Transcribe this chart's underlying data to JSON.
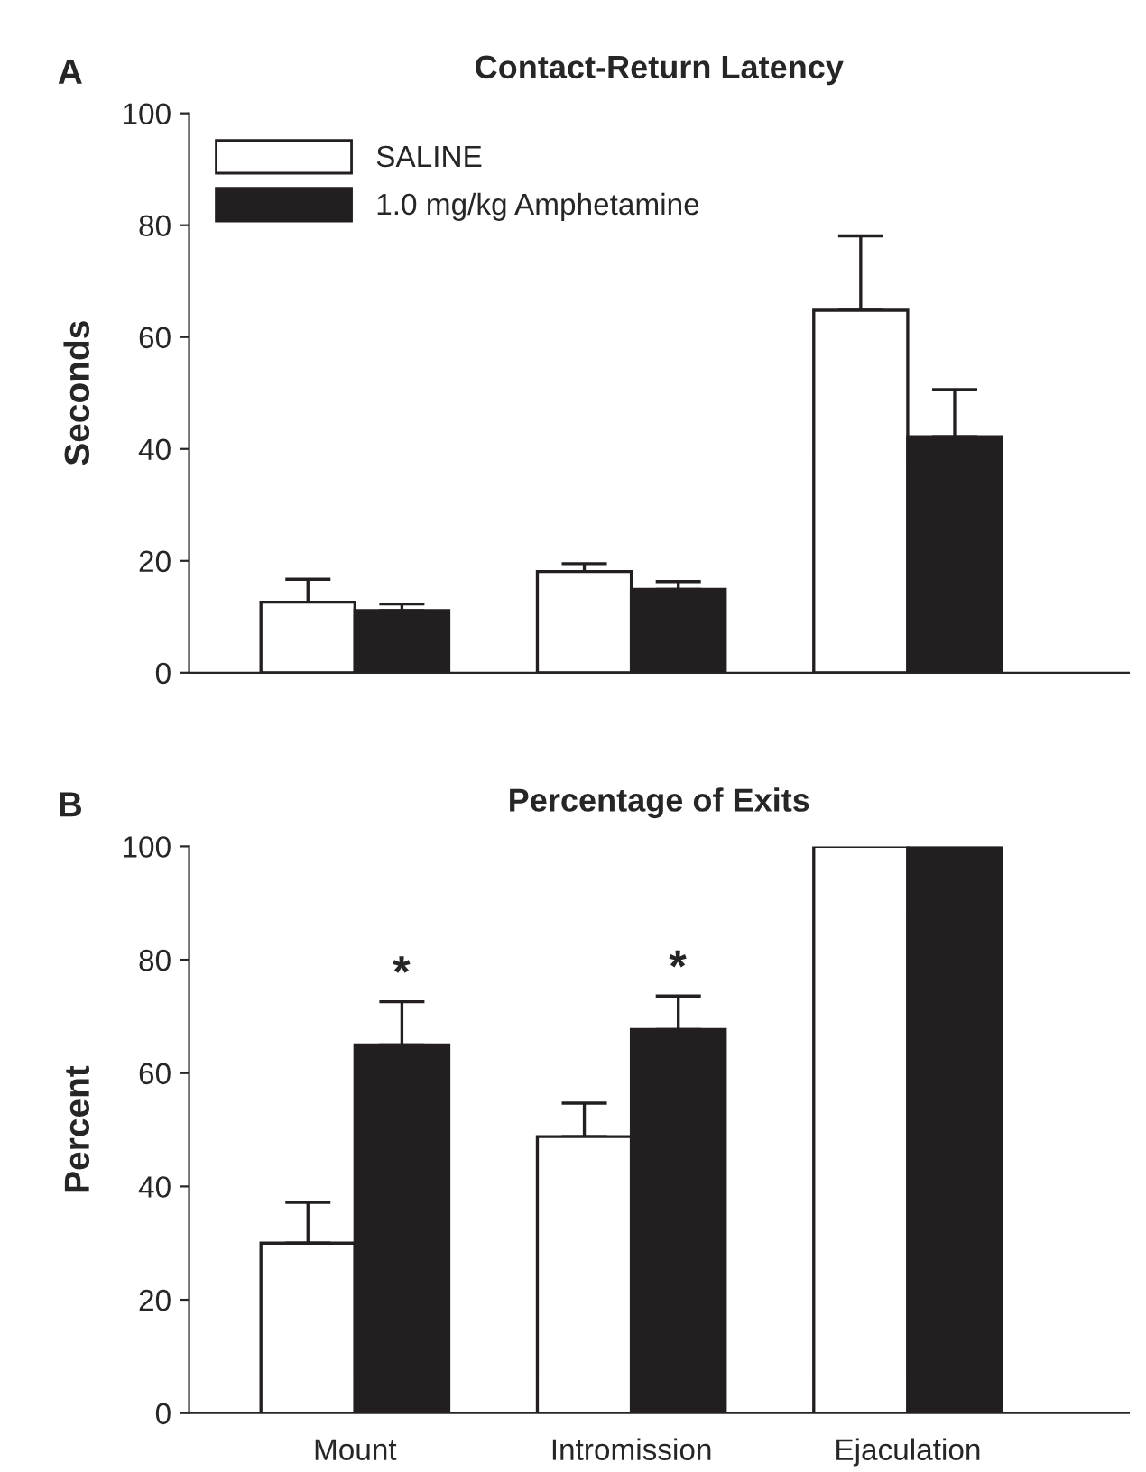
{
  "chart_data": [
    {
      "type": "bar",
      "title": "Contact-Return Latency",
      "ylabel": "Seconds",
      "annotations": [
        "A"
      ],
      "categories": [
        null,
        null,
        null
      ],
      "series": [
        {
          "name": "SALINE",
          "color": "#ffffff",
          "values": [
            12.6,
            18.1,
            64.8
          ],
          "errors": [
            [
              12.6,
              16.7
            ],
            [
              18.1,
              19.5
            ],
            [
              64.8,
              78.1
            ]
          ]
        },
        {
          "name": "1.0 mg/kg Amphetamine",
          "color": "#231f20",
          "values": [
            11.1,
            14.9,
            42.2
          ],
          "errors": [
            [
              11.1,
              12.3
            ],
            [
              14.9,
              16.3
            ],
            [
              42.2,
              50.6
            ]
          ]
        }
      ],
      "ylim": [
        0,
        100
      ],
      "yticks": [
        0,
        20,
        40,
        60,
        80,
        100
      ],
      "grid": false,
      "legend": "top left"
    },
    {
      "type": "bar",
      "title": "Percentage of Exits",
      "ylabel": "Percent",
      "annotations": [
        "B",
        "*",
        "*"
      ],
      "categories": [
        "Mount",
        "Intromission",
        "Ejaculation"
      ],
      "series": [
        {
          "color": "#ffffff",
          "values": [
            30.0,
            48.8,
            100
          ],
          "errors": [
            [
              30.0,
              37.2
            ],
            [
              48.8,
              54.7
            ],
            null
          ]
        },
        {
          "color": "#231f20",
          "values": [
            65.0,
            67.7,
            100
          ],
          "errors": [
            [
              65.0,
              72.6
            ],
            [
              67.7,
              73.6
            ],
            null
          ]
        }
      ],
      "ylim": [
        0,
        100
      ],
      "yticks": [
        0,
        20,
        40,
        60,
        80,
        100
      ],
      "grid": false,
      "legend": false
    }
  ]
}
